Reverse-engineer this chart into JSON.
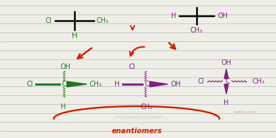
{
  "background_color": "#eeeee6",
  "line_color": "#c0c0cc",
  "green": "#1a7a1a",
  "purple": "#7b2080",
  "red": "#cc2200",
  "title": "enantiomers",
  "watermark": "HTTP://LEAH4SCI.COM/MCAT",
  "leah": "leah4sci.com",
  "figw": 4.0,
  "figh": 2.0,
  "dpi": 100
}
